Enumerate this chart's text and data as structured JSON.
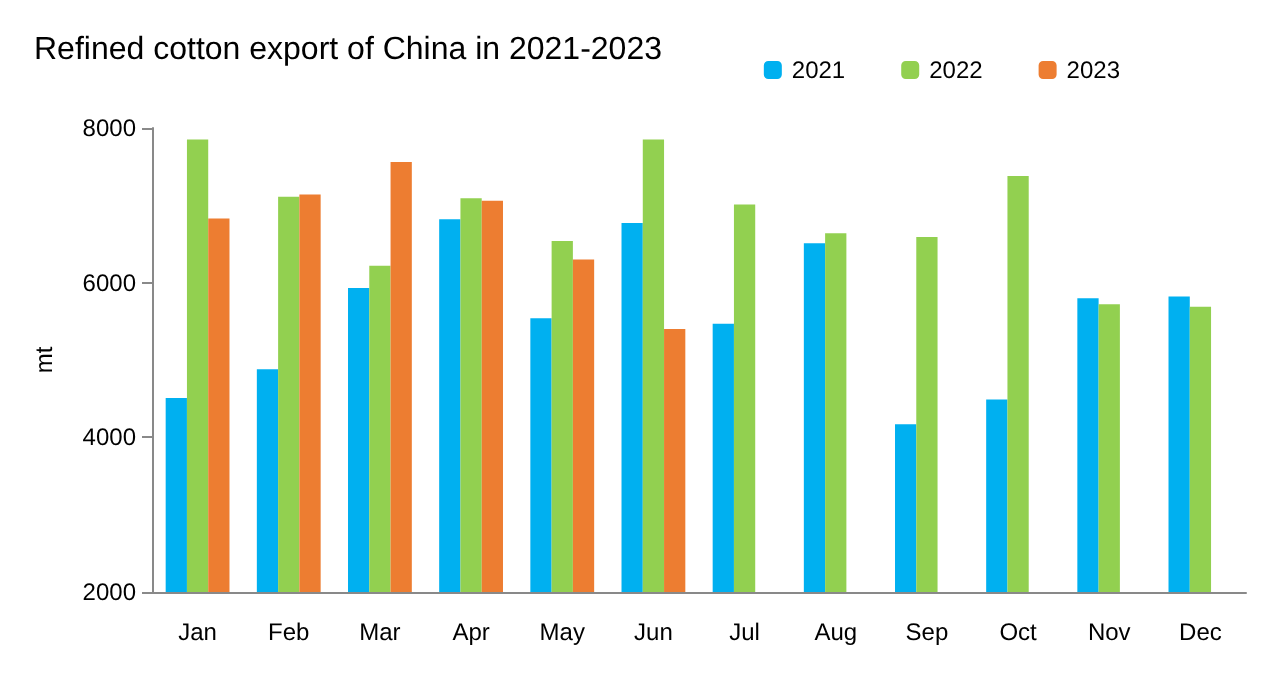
{
  "chart_data": {
    "type": "bar",
    "title": "Refined cotton export of China in 2021-2023",
    "ylabel": "mt",
    "categories": [
      "Jan",
      "Feb",
      "Mar",
      "Apr",
      "May",
      "Jun",
      "Jul",
      "Aug",
      "Sep",
      "Oct",
      "Nov",
      "Dec"
    ],
    "series": [
      {
        "name": "2021",
        "color": "#00b0f0",
        "values": [
          4510,
          4880,
          5930,
          6820,
          5540,
          6770,
          5470,
          6510,
          4170,
          4490,
          5800,
          5820
        ]
      },
      {
        "name": "2022",
        "color": "#92d050",
        "values": [
          7850,
          7110,
          6220,
          7090,
          6540,
          7850,
          7010,
          6640,
          6590,
          7380,
          5720,
          5690
        ]
      },
      {
        "name": "2023",
        "color": "#ed7d31",
        "values": [
          6830,
          7140,
          7560,
          7060,
          6300,
          5400,
          null,
          null,
          null,
          null,
          null,
          null
        ]
      }
    ],
    "ylim": [
      2000,
      8000
    ],
    "yticks": [
      2000,
      4000,
      6000,
      8000
    ],
    "grid": false,
    "legend": "top right"
  }
}
